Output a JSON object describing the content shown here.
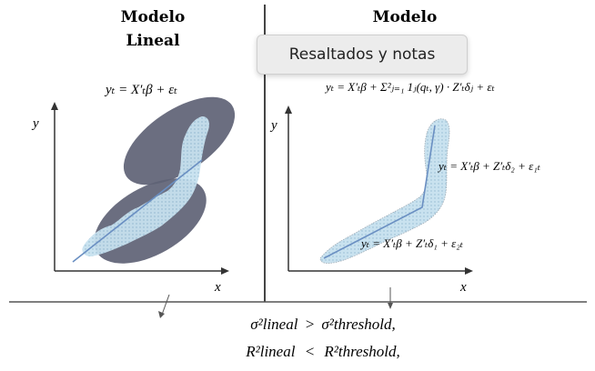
{
  "left_panel": {
    "title_line1": "Modelo",
    "title_line2": "Lineal",
    "equation": "yₜ = X′ₜβ + εₜ",
    "y_axis_label": "y",
    "x_axis_label": "x"
  },
  "right_panel": {
    "title_line1": "Modelo",
    "equation_main": "yₜ = X′ₜβ + Σ²ⱼ₌₁ 1ⱼ(qₜ, γ) · Z′ₜδⱼ + εₜ",
    "equation_upper": "yₜ = X′ₜβ + Z′ₜδ₂ + ε₁ₜ",
    "equation_lower": "yₜ = X′ₜβ + Z′ₜδ₁ + ε₂ₜ",
    "y_axis_label": "y",
    "x_axis_label": "x"
  },
  "bottom": {
    "line1_lhs": "σ²lineal",
    "line1_op": ">",
    "line1_rhs": "σ²threshold,",
    "line2_lhs": "R²lineal",
    "line2_op": "<",
    "line2_rhs": "R²threshold,"
  },
  "tooltip": {
    "text": "Resaltados y notas"
  },
  "colors": {
    "ellipse": "#5e6275",
    "cloud": "#b9d9ea",
    "line": "#6a8fc2",
    "axis": "#333333"
  }
}
